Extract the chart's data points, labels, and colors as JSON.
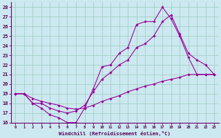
{
  "xlabel": "Windchill (Refroidissement éolien,°C)",
  "xlim": [
    -0.5,
    23.5
  ],
  "ylim": [
    16,
    28.5
  ],
  "yticks": [
    16,
    17,
    18,
    19,
    20,
    21,
    22,
    23,
    24,
    25,
    26,
    27,
    28
  ],
  "xticks": [
    0,
    1,
    2,
    3,
    4,
    5,
    6,
    7,
    8,
    9,
    10,
    11,
    12,
    13,
    14,
    15,
    16,
    17,
    18,
    19,
    20,
    21,
    22,
    23
  ],
  "bg_color": "#cce8f0",
  "line_color": "#990099",
  "grid_color": "#99ccbb",
  "series": [
    {
      "x": [
        0,
        1,
        2,
        3,
        4,
        5,
        6,
        7,
        8,
        9,
        10,
        11,
        12,
        13,
        14,
        15,
        16,
        17,
        18,
        19,
        20,
        21,
        22,
        23
      ],
      "y": [
        19,
        19,
        18,
        17.5,
        16.8,
        16.5,
        16.0,
        16.0,
        17.5,
        19.5,
        21.8,
        22.0,
        23.2,
        23.8,
        26.2,
        26.5,
        26.5,
        28.0,
        26.8,
        25.0,
        22.8,
        21.0,
        21.0,
        21.0
      ]
    },
    {
      "x": [
        0,
        1,
        2,
        3,
        4,
        5,
        6,
        7,
        8,
        9,
        10,
        11,
        12,
        13,
        14,
        15,
        16,
        17,
        18,
        19,
        20,
        21,
        22,
        23
      ],
      "y": [
        19,
        19,
        18,
        18,
        17.5,
        17.2,
        17.0,
        17.2,
        17.8,
        19.2,
        20.5,
        21.2,
        22.0,
        22.5,
        23.8,
        24.2,
        25.0,
        26.5,
        27.2,
        25.2,
        23.2,
        22.5,
        22.0,
        21.0
      ]
    },
    {
      "x": [
        0,
        1,
        2,
        3,
        4,
        5,
        6,
        7,
        8,
        9,
        10,
        11,
        12,
        13,
        14,
        15,
        16,
        17,
        18,
        19,
        20,
        21,
        22,
        23
      ],
      "y": [
        19,
        19,
        18.5,
        18.2,
        18.0,
        17.8,
        17.5,
        17.4,
        17.5,
        17.8,
        18.2,
        18.5,
        18.8,
        19.2,
        19.5,
        19.8,
        20.0,
        20.3,
        20.5,
        20.7,
        21.0,
        21.0,
        21.0,
        21.0
      ]
    }
  ]
}
